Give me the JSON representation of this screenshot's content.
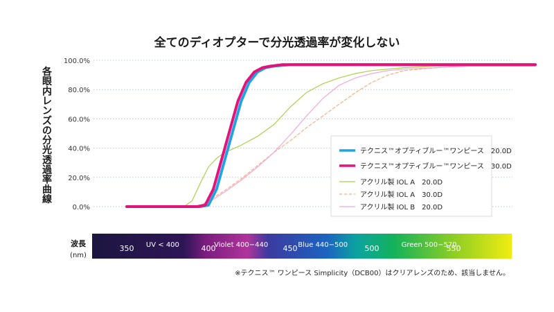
{
  "chart_data": {
    "type": "line",
    "title": "全てのディオプターで分光透過率が変化しない",
    "ylabel": "各眼内レンズの分光透過率曲線",
    "y_ticks": [
      "0.0%",
      "20.0%",
      "40.0%",
      "60.0%",
      "80.0%",
      "100.0%"
    ],
    "ylim": [
      0,
      100
    ],
    "xlim": [
      330,
      600
    ],
    "x_label": "波長",
    "x_unit": "(nm)",
    "x_ticks": [
      350,
      400,
      450,
      500,
      550
    ],
    "bands": [
      {
        "label": "UV < 400",
        "center": 372
      },
      {
        "label": "Violet 400−440",
        "center": 420
      },
      {
        "label": "Blue 440−500",
        "center": 470
      },
      {
        "label": "Green 500−570",
        "center": 535
      }
    ],
    "series": [
      {
        "name": "テクニス™オプティブルー™ワンピース　20.0D",
        "color": "#22a3e0",
        "width": 4,
        "dash": "",
        "x": [
          350,
          395,
          400,
          405,
          410,
          415,
          420,
          425,
          430,
          435,
          440,
          450,
          470,
          500,
          530,
          560,
          600
        ],
        "y": [
          0,
          0,
          1,
          12,
          32,
          52,
          72,
          85,
          92,
          95,
          96,
          97,
          97,
          97,
          97,
          97,
          97
        ]
      },
      {
        "name": "テクニス™オプティブルー™ワンピース　30.0D",
        "color": "#e0157a",
        "width": 4,
        "dash": "",
        "x": [
          350,
          393,
          398,
          403,
          408,
          413,
          418,
          423,
          428,
          433,
          438,
          445,
          470,
          500,
          530,
          560,
          600
        ],
        "y": [
          0,
          0,
          1,
          12,
          32,
          52,
          72,
          85,
          92,
          95,
          96,
          97,
          97,
          97,
          97,
          97,
          97
        ]
      },
      {
        "name": "アクリル製 IOL A　20.0D",
        "color": "#a8d14a",
        "width": 1.2,
        "dash": "",
        "x": [
          350,
          385,
          390,
          395,
          400,
          405,
          410,
          420,
          430,
          440,
          450,
          460,
          470,
          480,
          490,
          500,
          520,
          540,
          560,
          600
        ],
        "y": [
          0,
          0,
          4,
          16,
          27,
          33,
          37,
          42,
          48,
          56,
          68,
          78,
          84,
          88,
          91,
          93,
          95,
          96,
          96,
          96
        ]
      },
      {
        "name": "アクリル製 IOL A　30.0D",
        "color": "#f6b083",
        "width": 1.2,
        "dash": "4 3",
        "x": [
          350,
          388,
          395,
          400,
          410,
          420,
          430,
          440,
          450,
          460,
          470,
          480,
          490,
          500,
          510,
          520,
          540,
          560,
          600
        ],
        "y": [
          0,
          0,
          1,
          4,
          11,
          19,
          28,
          37,
          45,
          54,
          62,
          70,
          78,
          85,
          90,
          93,
          95,
          96,
          96
        ]
      },
      {
        "name": "アクリル製 IOL B　20.0D",
        "color": "#f0a8d8",
        "width": 1.2,
        "dash": "",
        "x": [
          350,
          390,
          395,
          400,
          410,
          420,
          430,
          440,
          450,
          460,
          470,
          480,
          490,
          500,
          510,
          520,
          540,
          560,
          600
        ],
        "y": [
          0,
          0,
          1,
          3,
          10,
          18,
          27,
          37,
          49,
          62,
          74,
          83,
          88,
          91,
          93,
          94,
          95,
          96,
          96
        ]
      }
    ],
    "legend_position": "right",
    "grid": true,
    "footnote": "※テクニス™ ワンピース Simplicity（DCB00）はクリアレンズのため、該当しません。"
  }
}
